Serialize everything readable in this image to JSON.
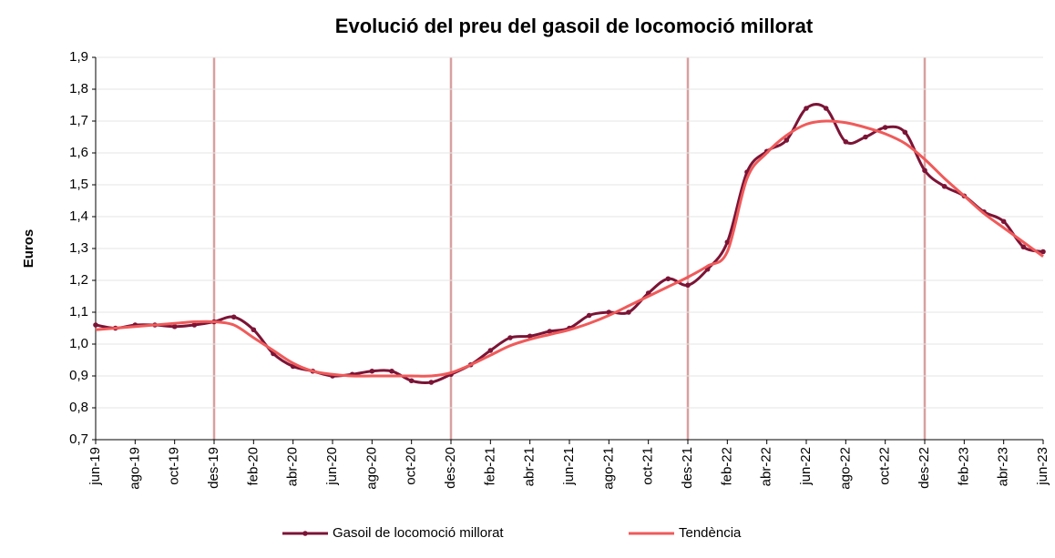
{
  "chart_data": {
    "type": "line",
    "title": "Evolució del preu del gasoil de locomoció millorat",
    "y_label": "Euros",
    "categories": [
      "jun-19",
      null,
      "ago-19",
      null,
      "oct-19",
      null,
      "des-19",
      null,
      "feb-20",
      null,
      "abr-20",
      null,
      "jun-20",
      null,
      "ago-20",
      null,
      "oct-20",
      null,
      "des-20",
      null,
      "feb-21",
      null,
      "abr-21",
      null,
      "jun-21",
      null,
      "ago-21",
      null,
      "oct-21",
      null,
      "des-21",
      null,
      "feb-22",
      null,
      "abr-22",
      null,
      "jun-22",
      null,
      "ago-22",
      null,
      "oct-22",
      null,
      "des-22",
      null,
      "feb-23",
      null,
      "abr-23",
      null,
      "jun-23"
    ],
    "series": [
      {
        "name": "Gasoil de locomoció millorat",
        "color": "#7b1436",
        "markers": true,
        "values": [
          1.06,
          1.05,
          1.06,
          1.06,
          1.055,
          1.06,
          1.07,
          1.085,
          1.045,
          0.97,
          0.93,
          0.915,
          0.9,
          0.905,
          0.915,
          0.915,
          0.885,
          0.88,
          0.905,
          0.935,
          0.98,
          1.02,
          1.025,
          1.04,
          1.05,
          1.09,
          1.1,
          1.1,
          1.16,
          1.205,
          1.185,
          1.235,
          1.32,
          1.54,
          1.605,
          1.64,
          1.74,
          1.74,
          1.635,
          1.65,
          1.68,
          1.665,
          1.545,
          1.495,
          1.465,
          1.415,
          1.385,
          1.305,
          1.29
        ]
      },
      {
        "name": "Tendència",
        "color": "#f05a5a",
        "markers": false,
        "values": [
          1.045,
          1.05,
          1.055,
          1.06,
          1.065,
          1.07,
          1.07,
          1.06,
          1.02,
          0.98,
          0.94,
          0.915,
          0.905,
          0.9,
          0.9,
          0.9,
          0.9,
          0.9,
          0.91,
          0.935,
          0.965,
          0.995,
          1.015,
          1.03,
          1.045,
          1.065,
          1.09,
          1.12,
          1.15,
          1.18,
          1.21,
          1.245,
          1.29,
          1.52,
          1.6,
          1.655,
          1.69,
          1.7,
          1.695,
          1.68,
          1.66,
          1.63,
          1.58,
          1.52,
          1.465,
          1.41,
          1.365,
          1.32,
          1.275
        ]
      }
    ],
    "ylim": [
      0.7,
      1.9
    ],
    "yticks": [
      {
        "value": 0.7,
        "label": "0,7"
      },
      {
        "value": 0.8,
        "label": "0,8"
      },
      {
        "value": 0.9,
        "label": "0,9"
      },
      {
        "value": 1.0,
        "label": "1,0"
      },
      {
        "value": 1.1,
        "label": "1,1"
      },
      {
        "value": 1.2,
        "label": "1,2"
      },
      {
        "value": 1.3,
        "label": "1,3"
      },
      {
        "value": 1.4,
        "label": "1,4"
      },
      {
        "value": 1.5,
        "label": "1,5"
      },
      {
        "value": 1.6,
        "label": "1,6"
      },
      {
        "value": 1.7,
        "label": "1,7"
      },
      {
        "value": 1.8,
        "label": "1,8"
      },
      {
        "value": 1.9,
        "label": "1,9"
      }
    ],
    "grid": true
  }
}
